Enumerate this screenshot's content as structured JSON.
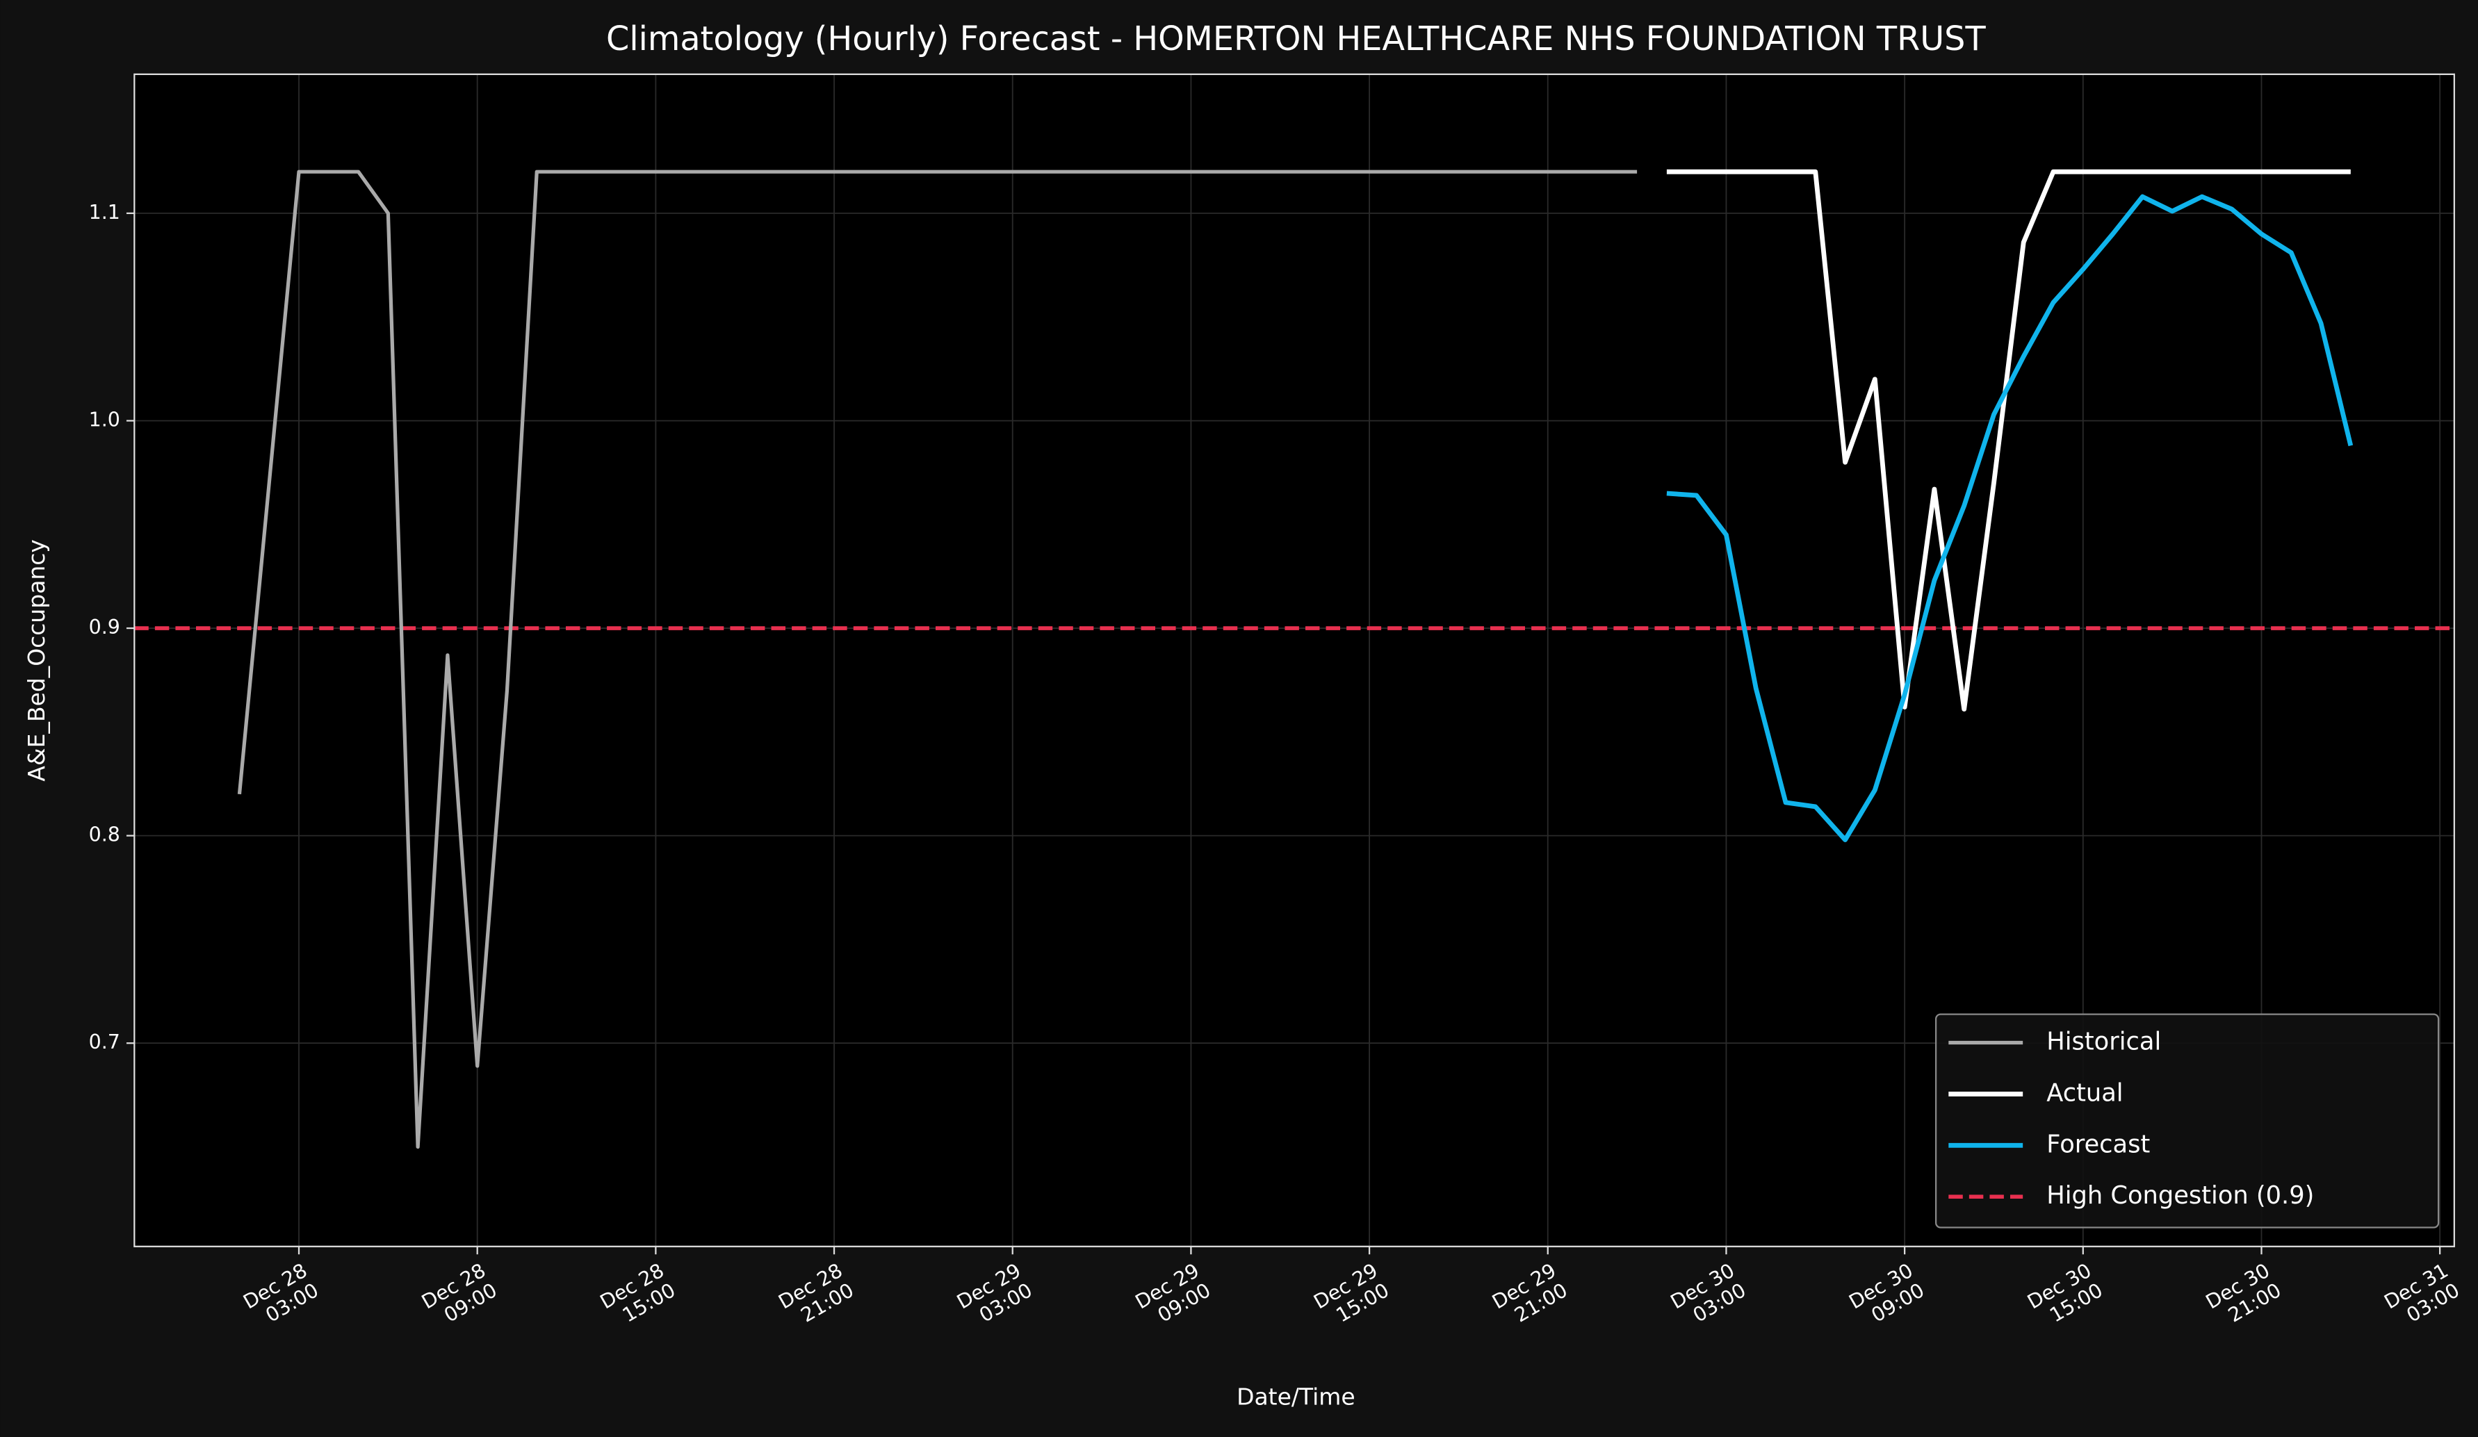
{
  "chart_data": {
    "type": "line",
    "title": "Climatology (Hourly) Forecast - HOMERTON HEALTHCARE NHS FOUNDATION TRUST",
    "xlabel": "Date/Time",
    "ylabel": "A&E_Bed_Occupancy",
    "xlim": [
      "Dec 27 21:28",
      "Dec 31 03:29"
    ],
    "ylim": [
      0.602,
      1.167
    ],
    "xticks": [
      {
        "value": "Dec 28 03:00",
        "label": "Dec 28\n03:00"
      },
      {
        "value": "Dec 28 09:00",
        "label": "Dec 28\n09:00"
      },
      {
        "value": "Dec 28 15:00",
        "label": "Dec 28\n15:00"
      },
      {
        "value": "Dec 28 21:00",
        "label": "Dec 28\n21:00"
      },
      {
        "value": "Dec 29 03:00",
        "label": "Dec 29\n03:00"
      },
      {
        "value": "Dec 29 09:00",
        "label": "Dec 29\n09:00"
      },
      {
        "value": "Dec 29 15:00",
        "label": "Dec 29\n15:00"
      },
      {
        "value": "Dec 29 21:00",
        "label": "Dec 29\n21:00"
      },
      {
        "value": "Dec 30 03:00",
        "label": "Dec 30\n03:00"
      },
      {
        "value": "Dec 30 09:00",
        "label": "Dec 30\n09:00"
      },
      {
        "value": "Dec 30 15:00",
        "label": "Dec 30\n15:00"
      },
      {
        "value": "Dec 30 21:00",
        "label": "Dec 30\n21:00"
      },
      {
        "value": "Dec 31 03:00",
        "label": "Dec 31\n03:00"
      }
    ],
    "yticks": [
      0.7,
      0.8,
      0.9,
      {
        "value": 1,
        "label": "1.0"
      },
      1.1
    ],
    "grid": true,
    "legend": "lower right",
    "series": [
      {
        "name": "Historical",
        "color": "#aaaaaa",
        "x": [
          "Dec 28 01:00",
          "Dec 28 02:00",
          "Dec 28 03:00",
          "Dec 28 04:00",
          "Dec 28 05:00",
          "Dec 28 06:00",
          "Dec 28 07:00",
          "Dec 28 08:00",
          "Dec 28 09:00",
          "Dec 28 10:00",
          "Dec 28 11:00",
          "Dec 28 12:00",
          "Dec 28 13:00",
          "Dec 28 14:00",
          "Dec 28 15:00",
          "Dec 28 16:00",
          "Dec 28 17:00",
          "Dec 28 18:00",
          "Dec 28 19:00",
          "Dec 28 20:00",
          "Dec 28 21:00",
          "Dec 28 22:00",
          "Dec 28 23:00",
          "Dec 29 00:00",
          "Dec 29 01:00",
          "Dec 29 02:00",
          "Dec 29 03:00",
          "Dec 29 04:00",
          "Dec 29 05:00",
          "Dec 29 06:00",
          "Dec 29 07:00",
          "Dec 29 08:00",
          "Dec 29 09:00",
          "Dec 29 10:00",
          "Dec 29 11:00",
          "Dec 29 12:00",
          "Dec 29 13:00",
          "Dec 29 14:00",
          "Dec 29 15:00",
          "Dec 29 16:00",
          "Dec 29 17:00",
          "Dec 29 18:00",
          "Dec 29 19:00",
          "Dec 29 20:00",
          "Dec 29 21:00",
          "Dec 29 22:00",
          "Dec 29 23:00",
          "Dec 30 00:00"
        ],
        "values": [
          0.82,
          0.97,
          1.12,
          1.12,
          1.12,
          1.1,
          0.65,
          0.887,
          0.689,
          0.87,
          1.12,
          1.12,
          1.12,
          1.12,
          1.12,
          1.12,
          1.12,
          1.12,
          1.12,
          1.12,
          1.12,
          1.12,
          1.12,
          1.12,
          1.12,
          1.12,
          1.12,
          1.12,
          1.12,
          1.12,
          1.12,
          1.12,
          1.12,
          1.12,
          1.12,
          1.12,
          1.12,
          1.12,
          1.12,
          1.12,
          1.12,
          1.12,
          1.12,
          1.12,
          1.12,
          1.12,
          1.12,
          1.12
        ]
      },
      {
        "name": "Actual",
        "color": "#ffffff",
        "x": [
          "Dec 30 01:00",
          "Dec 30 02:00",
          "Dec 30 03:00",
          "Dec 30 04:00",
          "Dec 30 05:00",
          "Dec 30 06:00",
          "Dec 30 07:00",
          "Dec 30 08:00",
          "Dec 30 09:00",
          "Dec 30 10:00",
          "Dec 30 11:00",
          "Dec 30 12:00",
          "Dec 30 13:00",
          "Dec 30 14:00",
          "Dec 30 15:00",
          "Dec 30 16:00",
          "Dec 30 17:00",
          "Dec 30 18:00",
          "Dec 30 19:00",
          "Dec 30 20:00",
          "Dec 30 21:00",
          "Dec 30 22:00",
          "Dec 30 23:00",
          "Dec 31 00:00"
        ],
        "values": [
          1.12,
          1.12,
          1.12,
          1.12,
          1.12,
          1.12,
          0.98,
          1.02,
          0.862,
          0.967,
          0.861,
          0.97,
          1.086,
          1.12,
          1.12,
          1.12,
          1.12,
          1.12,
          1.12,
          1.12,
          1.12,
          1.12,
          1.12,
          1.12
        ]
      },
      {
        "name": "Forecast",
        "color": "#10b4ec",
        "x": [
          "Dec 30 01:00",
          "Dec 30 02:00",
          "Dec 30 03:00",
          "Dec 30 04:00",
          "Dec 30 05:00",
          "Dec 30 06:00",
          "Dec 30 07:00",
          "Dec 30 08:00",
          "Dec 30 09:00",
          "Dec 30 10:00",
          "Dec 30 11:00",
          "Dec 30 12:00",
          "Dec 30 13:00",
          "Dec 30 14:00",
          "Dec 30 15:00",
          "Dec 30 16:00",
          "Dec 30 17:00",
          "Dec 30 18:00",
          "Dec 30 19:00",
          "Dec 30 20:00",
          "Dec 30 21:00",
          "Dec 30 22:00",
          "Dec 30 23:00",
          "Dec 31 00:00"
        ],
        "values": [
          0.965,
          0.964,
          0.945,
          0.871,
          0.816,
          0.814,
          0.798,
          0.822,
          0.868,
          0.923,
          0.959,
          1.003,
          1.031,
          1.057,
          1.073,
          1.09,
          1.108,
          1.101,
          1.108,
          1.102,
          1.09,
          1.081,
          1.047,
          0.988
        ]
      }
    ],
    "hlines": [
      {
        "name": "High Congestion (0.9)",
        "value": 0.9,
        "color": "#e8304f",
        "style": "dashed"
      }
    ]
  }
}
